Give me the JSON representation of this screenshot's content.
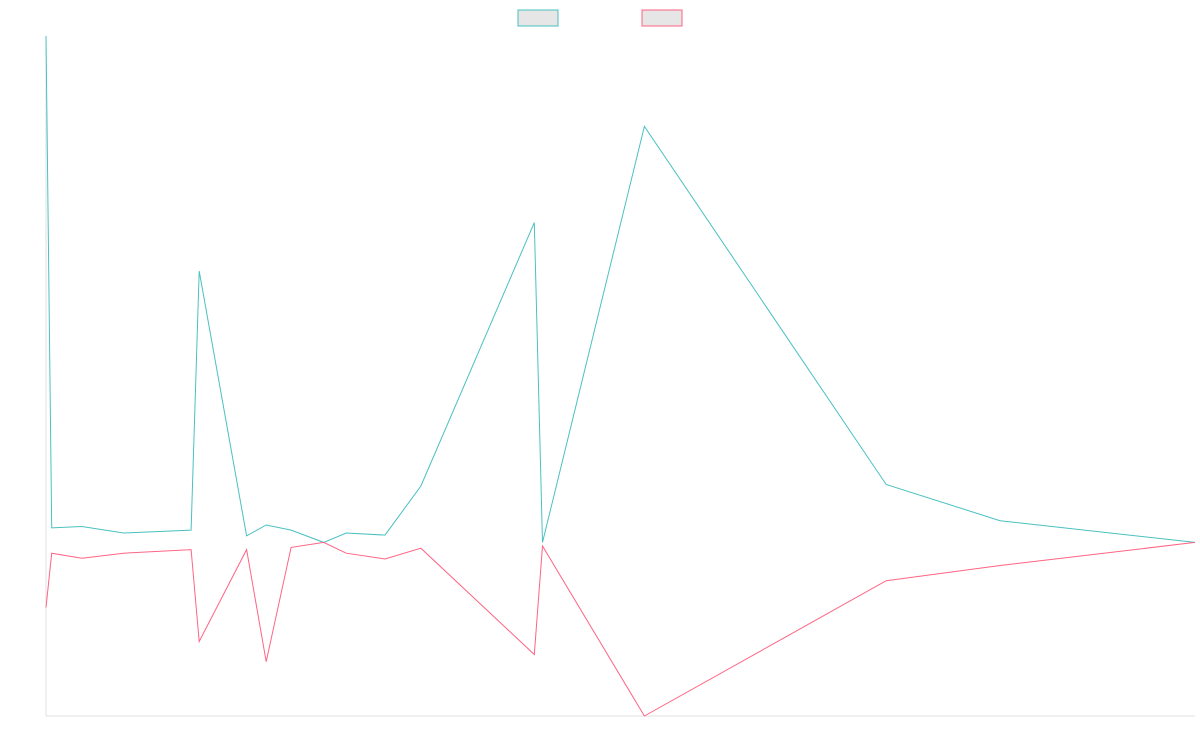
{
  "colors": {
    "series_1": "#4bc0c0",
    "series_2": "#ff6384",
    "swatch_fill": "#e6e6e6",
    "axis": "#e0e0e0"
  },
  "legend": {
    "position": "top-center",
    "items": [
      {
        "series": 0,
        "label": ""
      },
      {
        "series": 1,
        "label": ""
      }
    ]
  },
  "chart_data": {
    "type": "line",
    "title": "",
    "xlabel": "",
    "ylabel": "",
    "grid": false,
    "xlim": [
      0,
      24
    ],
    "ylim": [
      -2.4,
      7
    ],
    "x": [
      0,
      0.12,
      0.75,
      1.62,
      3.03,
      3.2,
      4.19,
      4.6,
      5.12,
      5.8,
      6.27,
      7.08,
      7.83,
      10.2,
      10.37,
      12.5,
      17.55,
      19.93,
      24
    ],
    "series": [
      {
        "name": "",
        "values": [
          7.0,
          0.2,
          0.22,
          0.13,
          0.17,
          3.75,
          0.09,
          0.24,
          0.17,
          0.0,
          0.13,
          0.1,
          0.78,
          4.42,
          0.0,
          5.75,
          0.8,
          0.3,
          0.0
        ]
      },
      {
        "name": "",
        "values": [
          -0.9,
          -0.15,
          -0.22,
          -0.15,
          -0.1,
          -1.37,
          -0.1,
          -1.65,
          -0.07,
          0.0,
          -0.15,
          -0.23,
          -0.08,
          -1.55,
          -0.05,
          -2.4,
          -0.53,
          -0.32,
          0.0
        ]
      }
    ]
  }
}
